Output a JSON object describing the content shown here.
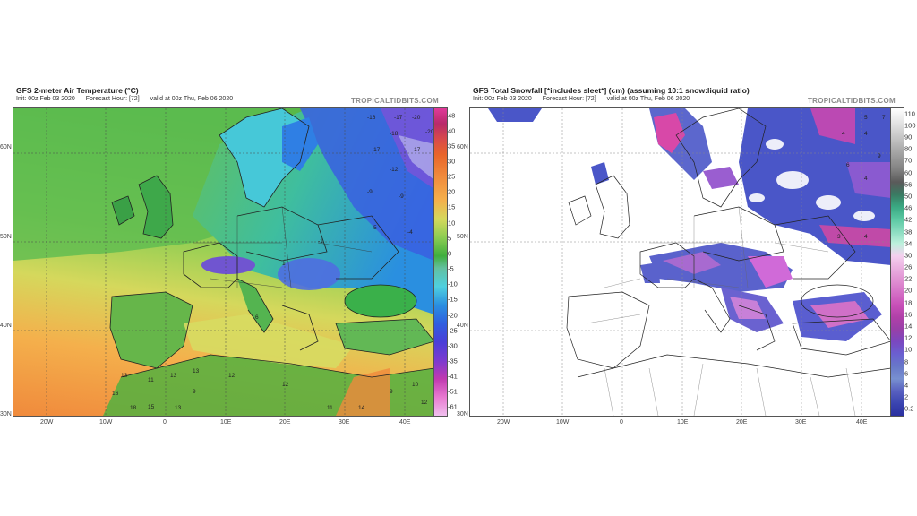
{
  "left": {
    "title": "GFS 2-meter Air Temperature (°C)",
    "init": "Init: 00z Feb 03 2020",
    "forecast_hour": "Forecast Hour: [72]",
    "valid": "valid at 00z Thu, Feb 06 2020",
    "brand": "TROPICALTIDBITS.COM",
    "lat_labels": [
      "60N",
      "50N",
      "40N",
      "30N"
    ],
    "lon_labels": [
      "20W",
      "10W",
      "0",
      "10E",
      "20E",
      "30E",
      "40E"
    ],
    "colorbar": {
      "labels": [
        "48",
        "40",
        "35",
        "30",
        "25",
        "20",
        "15",
        "10",
        "5",
        "0",
        "-5",
        "-10",
        "-15",
        "-20",
        "-25",
        "-30",
        "-35",
        "-41",
        "-51",
        "-61"
      ]
    },
    "map_numbers": [
      "-16",
      "-17",
      "-20",
      "-20",
      "-18",
      "-17",
      "-17",
      "-12",
      "-9",
      "-9",
      "-5",
      "-4",
      "-1",
      "1",
      "6",
      "13",
      "11",
      "13",
      "13",
      "12",
      "12",
      "15",
      "16",
      "18",
      "13",
      "9",
      "11",
      "14",
      "9",
      "10",
      "12"
    ]
  },
  "right": {
    "title": "GFS Total Snowfall [*includes sleet*] (cm) (assuming 10:1 snow:liquid ratio)",
    "init": "Init: 00z Feb 03 2020",
    "forecast_hour": "Forecast Hour: [72]",
    "valid": "valid at 00z Thu, Feb 06 2020",
    "brand": "TROPICALTIDBITS.COM",
    "lat_labels": [
      "60N",
      "50N",
      "40N",
      "30N"
    ],
    "lon_labels": [
      "20W",
      "10W",
      "0",
      "10E",
      "20E",
      "30E",
      "40E"
    ],
    "colorbar": {
      "labels": [
        "110",
        "100",
        "90",
        "80",
        "70",
        "60",
        "56",
        "50",
        "46",
        "42",
        "38",
        "34",
        "30",
        "26",
        "22",
        "20",
        "18",
        "16",
        "14",
        "12",
        "10",
        "8",
        "6",
        "4",
        "2",
        "0.2"
      ]
    },
    "map_numbers": [
      "5",
      "4",
      "4",
      "7",
      "9",
      "6",
      "4",
      "3",
      "4"
    ]
  }
}
